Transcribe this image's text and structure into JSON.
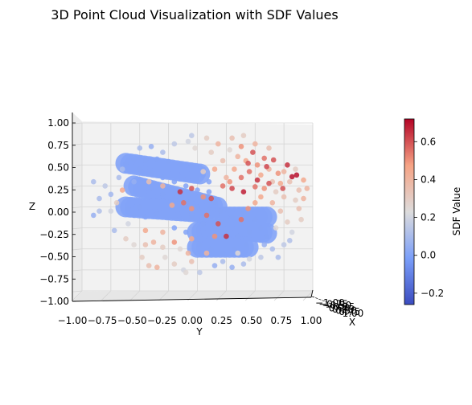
{
  "chart_data": {
    "type": "scatter",
    "title": "3D Point Cloud Visualization with SDF Values",
    "xlabel": "X",
    "ylabel": "Y",
    "zlabel": "Z",
    "view": "3d",
    "grid": true,
    "y_ticks": [
      "−1.00",
      "−0.75",
      "−0.50",
      "−0.25",
      "0.00",
      "0.25",
      "0.50",
      "0.75",
      "1.00"
    ],
    "y_tick_values": [
      -1.0,
      -0.75,
      -0.5,
      -0.25,
      0.0,
      0.25,
      0.5,
      0.75,
      1.0
    ],
    "z_ticks": [
      "−1.00",
      "−0.75",
      "−0.50",
      "−0.25",
      "0.00",
      "0.25",
      "0.50",
      "0.75",
      "1.00"
    ],
    "z_tick_values": [
      -1.0,
      -0.75,
      -0.5,
      -0.25,
      0.0,
      0.25,
      0.5,
      0.75,
      1.0
    ],
    "x_ticks": [
      "−1.00",
      "−0.75",
      "−0.50",
      "−0.25",
      "0.00",
      "0.25",
      "0.50",
      "0.75",
      "1.00"
    ],
    "ylim": [
      -1.0,
      1.0
    ],
    "zlim": [
      -1.0,
      1.0
    ],
    "colorbar": {
      "label": "SDF Value",
      "colormap": "coolwarm",
      "range": [
        -0.26,
        0.72
      ],
      "ticks": [
        "−0.2",
        "0.0",
        "0.2",
        "0.4",
        "0.6"
      ],
      "tick_values": [
        -0.2,
        0.0,
        0.2,
        0.4,
        0.6
      ]
    },
    "points": [
      {
        "y": -0.62,
        "z": 0.52,
        "sdf": 0.0
      },
      {
        "y": -0.55,
        "z": 0.56,
        "sdf": 0.0
      },
      {
        "y": -0.45,
        "z": 0.55,
        "sdf": 0.0
      },
      {
        "y": -0.35,
        "z": 0.57,
        "sdf": 0.0
      },
      {
        "y": -0.25,
        "z": 0.54,
        "sdf": 0.0
      },
      {
        "y": -0.15,
        "z": 0.5,
        "sdf": 0.0
      },
      {
        "y": -0.05,
        "z": 0.48,
        "sdf": 0.0
      },
      {
        "y": 0.05,
        "z": 0.38,
        "sdf": 0.0
      },
      {
        "y": -0.5,
        "z": 0.45,
        "sdf": 0.0
      },
      {
        "y": -0.4,
        "z": 0.4,
        "sdf": 0.0
      },
      {
        "y": -0.3,
        "z": 0.35,
        "sdf": 0.0
      },
      {
        "y": -0.2,
        "z": 0.3,
        "sdf": 0.0
      },
      {
        "y": -0.1,
        "z": 0.25,
        "sdf": 0.0
      },
      {
        "y": 0.0,
        "z": 0.2,
        "sdf": 0.0
      },
      {
        "y": 0.1,
        "z": 0.18,
        "sdf": 0.0
      },
      {
        "y": -0.4,
        "z": 0.22,
        "sdf": 0.0
      },
      {
        "y": -0.3,
        "z": 0.15,
        "sdf": 0.0
      },
      {
        "y": -0.2,
        "z": 0.1,
        "sdf": 0.0
      },
      {
        "y": -0.1,
        "z": 0.05,
        "sdf": 0.0
      },
      {
        "y": 0.0,
        "z": 0.0,
        "sdf": 0.0
      },
      {
        "y": 0.1,
        "z": -0.02,
        "sdf": 0.0
      },
      {
        "y": 0.2,
        "z": -0.05,
        "sdf": 0.0
      },
      {
        "y": -0.6,
        "z": -0.02,
        "sdf": 0.0
      },
      {
        "y": -0.5,
        "z": 0.0,
        "sdf": 0.0
      },
      {
        "y": -0.55,
        "z": -0.1,
        "sdf": 0.0
      },
      {
        "y": -0.45,
        "z": -0.12,
        "sdf": 0.0
      },
      {
        "y": -0.35,
        "z": -0.08,
        "sdf": 0.0
      },
      {
        "y": 0.05,
        "z": -0.2,
        "sdf": 0.0
      },
      {
        "y": 0.15,
        "z": -0.25,
        "sdf": 0.0
      },
      {
        "y": 0.25,
        "z": -0.3,
        "sdf": 0.0
      },
      {
        "y": 0.35,
        "z": -0.35,
        "sdf": 0.0
      },
      {
        "y": 0.45,
        "z": -0.3,
        "sdf": 0.0
      },
      {
        "y": 0.55,
        "z": -0.25,
        "sdf": 0.0
      },
      {
        "y": 0.3,
        "z": -0.12,
        "sdf": 0.0
      },
      {
        "y": 0.4,
        "z": -0.08,
        "sdf": 0.0
      },
      {
        "y": 0.5,
        "z": -0.15,
        "sdf": 0.0
      },
      {
        "y": 0.02,
        "z": -0.45,
        "sdf": 0.0
      },
      {
        "y": 0.12,
        "z": -0.5,
        "sdf": 0.0
      },
      {
        "y": 0.22,
        "z": -0.55,
        "sdf": 0.0
      },
      {
        "y": 0.32,
        "z": -0.5,
        "sdf": 0.0
      },
      {
        "y": 0.42,
        "z": -0.45,
        "sdf": 0.0
      },
      {
        "y": 0.15,
        "z": 0.05,
        "sdf": 0.0
      },
      {
        "y": -0.2,
        "z": -0.25,
        "sdf": 0.0
      },
      {
        "y": -0.1,
        "z": -0.3,
        "sdf": 0.0
      },
      {
        "y": 0.05,
        "z": 0.45,
        "sdf": 0.0
      },
      {
        "y": 0.1,
        "z": 0.3,
        "sdf": 0.0
      },
      {
        "y": 0.6,
        "z": -0.35,
        "sdf": 0.0
      },
      {
        "y": -0.05,
        "z": -0.12,
        "sdf": 0.0
      },
      {
        "y": -0.65,
        "z": 0.2,
        "sdf": 0.45
      },
      {
        "y": -0.7,
        "z": 0.05,
        "sdf": 0.3
      },
      {
        "y": -0.75,
        "z": -0.05,
        "sdf": 0.2
      },
      {
        "y": -0.8,
        "z": 0.25,
        "sdf": 0.15
      },
      {
        "y": -0.85,
        "z": 0.1,
        "sdf": 0.1
      },
      {
        "y": -0.9,
        "z": -0.1,
        "sdf": 0.05
      },
      {
        "y": -0.72,
        "z": -0.28,
        "sdf": 0.1
      },
      {
        "y": -0.62,
        "z": -0.38,
        "sdf": 0.3
      },
      {
        "y": -0.55,
        "z": -0.45,
        "sdf": 0.25
      },
      {
        "y": -0.48,
        "z": -0.6,
        "sdf": 0.3
      },
      {
        "y": -0.42,
        "z": -0.7,
        "sdf": 0.35
      },
      {
        "y": -0.35,
        "z": -0.72,
        "sdf": 0.4
      },
      {
        "y": -0.28,
        "z": -0.6,
        "sdf": 0.25
      },
      {
        "y": -0.2,
        "z": -0.68,
        "sdf": 0.3
      },
      {
        "y": -0.12,
        "z": -0.75,
        "sdf": 0.2
      },
      {
        "y": -0.05,
        "z": -0.65,
        "sdf": 0.35
      },
      {
        "y": 0.02,
        "z": -0.78,
        "sdf": 0.15
      },
      {
        "y": -0.08,
        "z": -0.55,
        "sdf": 0.4
      },
      {
        "y": -0.45,
        "z": -0.45,
        "sdf": 0.35
      },
      {
        "y": -0.38,
        "z": -0.42,
        "sdf": 0.4
      },
      {
        "y": -0.3,
        "z": -0.48,
        "sdf": 0.3
      },
      {
        "y": -0.15,
        "z": -0.5,
        "sdf": 0.25
      },
      {
        "y": -0.6,
        "z": -0.2,
        "sdf": 0.2
      },
      {
        "y": -0.68,
        "z": 0.35,
        "sdf": 0.1
      },
      {
        "y": -0.5,
        "z": 0.7,
        "sdf": 0.1
      },
      {
        "y": -0.4,
        "z": 0.72,
        "sdf": 0.05
      },
      {
        "y": -0.3,
        "z": 0.65,
        "sdf": 0.1
      },
      {
        "y": -0.2,
        "z": 0.75,
        "sdf": 0.15
      },
      {
        "y": -0.08,
        "z": 0.78,
        "sdf": 0.2
      },
      {
        "y": -0.02,
        "z": 0.7,
        "sdf": 0.25
      },
      {
        "y": 0.08,
        "z": 0.82,
        "sdf": 0.3
      },
      {
        "y": -0.05,
        "z": 0.85,
        "sdf": 0.15
      },
      {
        "y": 0.12,
        "z": 0.65,
        "sdf": 0.3
      },
      {
        "y": 0.18,
        "z": 0.75,
        "sdf": 0.4
      },
      {
        "y": 0.22,
        "z": 0.55,
        "sdf": 0.35
      },
      {
        "y": 0.28,
        "z": 0.68,
        "sdf": 0.25
      },
      {
        "y": 0.3,
        "z": 0.82,
        "sdf": 0.35
      },
      {
        "y": 0.35,
        "z": 0.6,
        "sdf": 0.4
      },
      {
        "y": 0.32,
        "z": 0.45,
        "sdf": 0.45
      },
      {
        "y": 0.38,
        "z": 0.72,
        "sdf": 0.5
      },
      {
        "y": 0.42,
        "z": 0.55,
        "sdf": 0.45
      },
      {
        "y": 0.45,
        "z": 0.42,
        "sdf": 0.55
      },
      {
        "y": 0.48,
        "z": 0.65,
        "sdf": 0.6
      },
      {
        "y": 0.52,
        "z": 0.5,
        "sdf": 0.5
      },
      {
        "y": 0.55,
        "z": 0.38,
        "sdf": 0.45
      },
      {
        "y": 0.58,
        "z": 0.58,
        "sdf": 0.55
      },
      {
        "y": 0.62,
        "z": 0.45,
        "sdf": 0.4
      },
      {
        "y": 0.65,
        "z": 0.3,
        "sdf": 0.35
      },
      {
        "y": 0.68,
        "z": 0.18,
        "sdf": 0.3
      },
      {
        "y": 0.72,
        "z": 0.28,
        "sdf": 0.45
      },
      {
        "y": 0.75,
        "z": 0.42,
        "sdf": 0.4
      },
      {
        "y": 0.8,
        "z": 0.3,
        "sdf": 0.35
      },
      {
        "y": 0.85,
        "z": 0.45,
        "sdf": 0.3
      },
      {
        "y": 0.88,
        "z": 0.2,
        "sdf": 0.35
      },
      {
        "y": 0.92,
        "z": 0.32,
        "sdf": 0.45
      },
      {
        "y": 0.85,
        "z": 0.08,
        "sdf": 0.3
      },
      {
        "y": 0.75,
        "z": 0.12,
        "sdf": 0.35
      },
      {
        "y": 0.65,
        "z": 0.05,
        "sdf": 0.4
      },
      {
        "y": 0.55,
        "z": 0.12,
        "sdf": 0.45
      },
      {
        "y": 0.72,
        "z": -0.05,
        "sdf": 0.35
      },
      {
        "y": 0.78,
        "z": -0.18,
        "sdf": 0.3
      },
      {
        "y": 0.68,
        "z": -0.25,
        "sdf": 0.25
      },
      {
        "y": 0.82,
        "z": -0.3,
        "sdf": 0.2
      },
      {
        "y": 0.75,
        "z": -0.45,
        "sdf": 0.15
      },
      {
        "y": 0.65,
        "z": -0.5,
        "sdf": 0.1
      },
      {
        "y": 0.58,
        "z": -0.45,
        "sdf": 0.05
      },
      {
        "y": 0.4,
        "z": -0.68,
        "sdf": 0.1
      },
      {
        "y": 0.3,
        "z": -0.72,
        "sdf": 0.05
      },
      {
        "y": 0.22,
        "z": -0.65,
        "sdf": 0.1
      },
      {
        "y": 0.15,
        "z": -0.7,
        "sdf": 0.05
      },
      {
        "y": -0.1,
        "z": -0.78,
        "sdf": 0.25
      },
      {
        "y": 0.05,
        "z": 0.42,
        "sdf": 0.3
      },
      {
        "y": 0.15,
        "z": 0.45,
        "sdf": 0.45
      },
      {
        "y": 0.25,
        "z": 0.35,
        "sdf": 0.4
      },
      {
        "y": 0.28,
        "z": 0.3,
        "sdf": 0.5
      },
      {
        "y": 0.38,
        "z": 0.35,
        "sdf": 0.55
      },
      {
        "y": 0.44,
        "z": 0.52,
        "sdf": 0.6
      },
      {
        "y": 0.5,
        "z": 0.24,
        "sdf": 0.55
      },
      {
        "y": 0.58,
        "z": 0.22,
        "sdf": 0.5
      },
      {
        "y": 0.62,
        "z": 0.28,
        "sdf": 0.6
      },
      {
        "y": 0.7,
        "z": 0.4,
        "sdf": 0.5
      },
      {
        "y": 0.74,
        "z": 0.22,
        "sdf": 0.6
      },
      {
        "y": 0.82,
        "z": 0.36,
        "sdf": 0.7
      },
      {
        "y": 0.86,
        "z": 0.38,
        "sdf": 0.7
      },
      {
        "y": 0.78,
        "z": 0.5,
        "sdf": 0.65
      },
      {
        "y": 0.6,
        "z": 0.48,
        "sdf": 0.62
      },
      {
        "y": 0.66,
        "z": 0.56,
        "sdf": 0.6
      },
      {
        "y": 0.52,
        "z": 0.32,
        "sdf": 0.65
      },
      {
        "y": 0.4,
        "z": 0.18,
        "sdf": 0.68
      },
      {
        "y": 0.3,
        "z": 0.22,
        "sdf": 0.62
      },
      {
        "y": 0.22,
        "z": 0.25,
        "sdf": 0.55
      },
      {
        "y": 0.12,
        "z": 0.1,
        "sdf": 0.6
      },
      {
        "y": 0.05,
        "z": 0.12,
        "sdf": 0.5
      },
      {
        "y": -0.05,
        "z": 0.22,
        "sdf": 0.6
      },
      {
        "y": -0.15,
        "z": 0.18,
        "sdf": 0.65
      },
      {
        "y": -0.12,
        "z": 0.05,
        "sdf": 0.55
      },
      {
        "y": -0.22,
        "z": 0.02,
        "sdf": 0.45
      },
      {
        "y": -0.05,
        "z": -0.02,
        "sdf": 0.5
      },
      {
        "y": 0.08,
        "z": -0.1,
        "sdf": 0.55
      },
      {
        "y": 0.18,
        "z": -0.2,
        "sdf": 0.6
      },
      {
        "y": 0.25,
        "z": -0.35,
        "sdf": 0.65
      },
      {
        "y": 0.38,
        "z": -0.15,
        "sdf": 0.55
      },
      {
        "y": 0.44,
        "z": -0.02,
        "sdf": 0.5
      },
      {
        "y": 0.5,
        "z": 0.05,
        "sdf": 0.45
      },
      {
        "y": -0.3,
        "z": 0.25,
        "sdf": 0.4
      },
      {
        "y": -0.42,
        "z": 0.3,
        "sdf": 0.35
      },
      {
        "y": -0.3,
        "z": -0.3,
        "sdf": 0.4
      },
      {
        "y": -0.45,
        "z": -0.28,
        "sdf": 0.45
      },
      {
        "y": -0.2,
        "z": -0.42,
        "sdf": 0.5
      },
      {
        "y": -0.05,
        "z": -0.38,
        "sdf": 0.45
      },
      {
        "y": 0.08,
        "z": -0.55,
        "sdf": 0.4
      },
      {
        "y": 0.15,
        "z": -0.35,
        "sdf": 0.5
      },
      {
        "y": -0.55,
        "z": 0.3,
        "sdf": 0.05
      },
      {
        "y": -0.65,
        "z": 0.45,
        "sdf": 0.1
      },
      {
        "y": -0.75,
        "z": 0.15,
        "sdf": 0.08
      },
      {
        "y": -0.85,
        "z": -0.05,
        "sdf": 0.12
      },
      {
        "y": -0.9,
        "z": 0.3,
        "sdf": 0.1
      },
      {
        "y": 0.9,
        "z": -0.15,
        "sdf": 0.3
      },
      {
        "y": 0.88,
        "z": -0.02,
        "sdf": 0.35
      },
      {
        "y": 0.92,
        "z": 0.1,
        "sdf": 0.4
      },
      {
        "y": 0.95,
        "z": 0.22,
        "sdf": 0.4
      },
      {
        "y": 0.62,
        "z": 0.7,
        "sdf": 0.35
      },
      {
        "y": 0.5,
        "z": 0.75,
        "sdf": 0.4
      },
      {
        "y": 0.4,
        "z": 0.85,
        "sdf": 0.3
      },
      {
        "y": 0.35,
        "z": -0.55,
        "sdf": 0.25
      },
      {
        "y": 0.45,
        "z": -0.62,
        "sdf": 0.2
      },
      {
        "y": 0.55,
        "z": -0.6,
        "sdf": 0.15
      },
      {
        "y": 0.7,
        "z": -0.6,
        "sdf": 0.1
      },
      {
        "y": 0.8,
        "z": -0.4,
        "sdf": 0.12
      }
    ]
  }
}
